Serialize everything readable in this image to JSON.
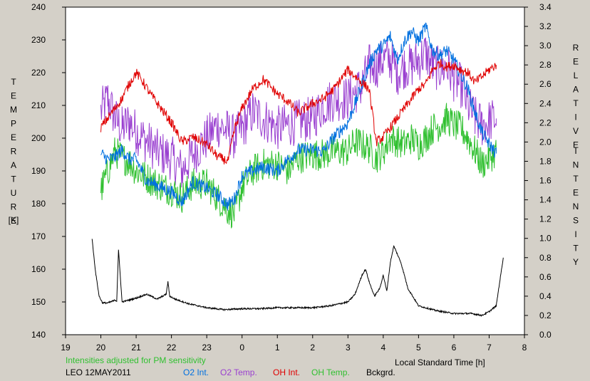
{
  "chart_data": {
    "type": "line",
    "title": "",
    "left_axis": {
      "label_letters": [
        "T",
        "E",
        "M",
        "P",
        "E",
        "R",
        "A",
        "T",
        "U",
        "R",
        "E"
      ],
      "unit": "[K]",
      "range": [
        140,
        240
      ],
      "ticks": [
        "140",
        "150",
        "160",
        "170",
        "180",
        "190",
        "200",
        "210",
        "220",
        "230",
        "240"
      ]
    },
    "right_axis": {
      "label_letters_1": [
        "R",
        "E",
        "L",
        "A",
        "T",
        "I",
        "V",
        "E"
      ],
      "label_letters_2": [
        "I",
        "N",
        "T",
        "E",
        "N",
        "S",
        "I",
        "T",
        "Y"
      ],
      "range": [
        0.0,
        3.4
      ],
      "ticks": [
        "0.0",
        "0.2",
        "0.4",
        "0.6",
        "0.8",
        "1.0",
        "1.2",
        "1.4",
        "1.6",
        "1.8",
        "2.0",
        "2.2",
        "2.4",
        "2.6",
        "2.8",
        "3.0",
        "3.2",
        "3.4"
      ]
    },
    "x_axis": {
      "label": "Local Standard Time [h]",
      "ticks": [
        "19",
        "20",
        "21",
        "22",
        "23",
        "0",
        "1",
        "2",
        "3",
        "4",
        "5",
        "6",
        "7",
        "8"
      ],
      "range": [
        19,
        32
      ]
    },
    "note": "Intensities adjusted for PM sensitivity",
    "station": "LEO 12MAY2011",
    "grid": false,
    "legend_position": "bottom",
    "series": [
      {
        "name": "O2 Int.",
        "color": "#0070e0",
        "axis": "right",
        "x": [
          20.0,
          20.2,
          20.4,
          20.6,
          20.8,
          21.0,
          21.3,
          21.6,
          22.0,
          22.3,
          22.6,
          23.0,
          23.3,
          23.6,
          23.8,
          24.0,
          24.3,
          24.6,
          25.0,
          25.3,
          25.6,
          26.0,
          26.3,
          26.6,
          27.0,
          27.2,
          27.4,
          27.6,
          27.8,
          28.0,
          28.2,
          28.4,
          28.6,
          28.8,
          29.0,
          29.2,
          29.4,
          29.6,
          29.8,
          30.0,
          30.2,
          30.4,
          30.6,
          30.8,
          31.0,
          31.2
        ],
        "y": [
          1.88,
          1.82,
          1.84,
          1.92,
          1.82,
          1.82,
          1.6,
          1.55,
          1.48,
          1.38,
          1.58,
          1.52,
          1.45,
          1.35,
          1.42,
          1.65,
          1.7,
          1.74,
          1.7,
          1.82,
          1.92,
          1.92,
          1.9,
          2.05,
          2.2,
          2.4,
          2.6,
          2.8,
          2.95,
          3.0,
          3.1,
          2.85,
          3.05,
          3.15,
          3.05,
          3.2,
          2.95,
          2.9,
          2.95,
          2.85,
          2.7,
          2.55,
          2.3,
          2.1,
          1.98,
          1.88
        ]
      },
      {
        "name": "O2 Temp.",
        "color": "#9a40d0",
        "axis": "left",
        "x": [
          20.0,
          20.2,
          20.4,
          20.6,
          20.8,
          21.0,
          21.3,
          21.6,
          22.0,
          22.3,
          22.6,
          23.0,
          23.3,
          23.6,
          23.8,
          24.0,
          24.3,
          24.6,
          25.0,
          25.3,
          25.6,
          26.0,
          26.3,
          26.6,
          27.0,
          27.2,
          27.4,
          27.6,
          27.8,
          28.0,
          28.2,
          28.4,
          28.6,
          28.8,
          29.0,
          29.2,
          29.4,
          29.6,
          29.8,
          30.0,
          30.2,
          30.4,
          30.6,
          30.8,
          31.0,
          31.2
        ],
        "y": [
          208,
          212,
          206,
          203,
          205,
          202,
          199,
          196,
          194,
          190,
          195,
          200,
          204,
          202,
          200,
          203,
          208,
          206,
          203,
          204,
          205,
          206,
          210,
          212,
          212,
          214,
          216,
          222,
          222,
          224,
          224,
          220,
          222,
          222,
          224,
          226,
          222,
          221,
          222,
          218,
          216,
          210,
          206,
          204,
          205,
          206
        ]
      },
      {
        "name": "OH Int.",
        "color": "#e00000",
        "axis": "right",
        "x": [
          20.0,
          20.2,
          20.4,
          20.6,
          20.8,
          21.0,
          21.2,
          21.4,
          21.6,
          22.0,
          22.3,
          22.6,
          23.0,
          23.3,
          23.6,
          23.8,
          24.0,
          24.3,
          24.6,
          25.0,
          25.3,
          25.6,
          26.0,
          26.3,
          26.6,
          27.0,
          27.3,
          27.6,
          27.8,
          28.0,
          28.2,
          28.4,
          28.6,
          28.8,
          29.0,
          29.2,
          29.4,
          29.6,
          29.8,
          30.0,
          30.2,
          30.4,
          30.6,
          30.8,
          31.0,
          31.2
        ],
        "y": [
          2.15,
          2.25,
          2.35,
          2.45,
          2.6,
          2.72,
          2.62,
          2.5,
          2.4,
          2.2,
          2.0,
          2.05,
          1.98,
          1.85,
          1.8,
          2.15,
          2.35,
          2.55,
          2.65,
          2.5,
          2.42,
          2.3,
          2.4,
          2.45,
          2.55,
          2.75,
          2.65,
          2.55,
          2.0,
          2.05,
          2.15,
          2.25,
          2.35,
          2.45,
          2.55,
          2.6,
          2.75,
          2.82,
          2.78,
          2.8,
          2.75,
          2.72,
          2.62,
          2.68,
          2.75,
          2.8
        ]
      },
      {
        "name": "OH Temp.",
        "color": "#30c030",
        "axis": "left",
        "x": [
          20.0,
          20.2,
          20.4,
          20.6,
          20.8,
          21.0,
          21.3,
          21.6,
          22.0,
          22.3,
          22.6,
          23.0,
          23.3,
          23.6,
          23.8,
          24.0,
          24.3,
          24.6,
          25.0,
          25.3,
          25.6,
          26.0,
          26.3,
          26.6,
          27.0,
          27.2,
          27.4,
          27.6,
          27.8,
          28.0,
          28.2,
          28.4,
          28.6,
          28.8,
          29.0,
          29.2,
          29.4,
          29.6,
          29.8,
          30.0,
          30.2,
          30.4,
          30.6,
          30.8,
          31.0,
          31.2
        ],
        "y": [
          184,
          190,
          196,
          194,
          193,
          190,
          188,
          186,
          184,
          182,
          186,
          186,
          182,
          178,
          177,
          185,
          190,
          192,
          192,
          190,
          194,
          195,
          195,
          196,
          196,
          199,
          198,
          197,
          194,
          196,
          200,
          199,
          198,
          200,
          198,
          200,
          203,
          204,
          206,
          204,
          203,
          200,
          196,
          192,
          194,
          196
        ]
      },
      {
        "name": "Bckgrd.",
        "color": "#000000",
        "axis": "right",
        "x": [
          19.75,
          19.85,
          19.95,
          20.05,
          20.2,
          20.35,
          20.4,
          20.45,
          20.5,
          20.6,
          20.8,
          21.0,
          21.3,
          21.6,
          21.85,
          21.9,
          21.95,
          22.1,
          22.5,
          23.0,
          23.5,
          24.0,
          24.5,
          25.0,
          25.5,
          26.0,
          26.5,
          27.0,
          27.2,
          27.4,
          27.5,
          27.6,
          27.75,
          27.9,
          28.0,
          28.1,
          28.2,
          28.3,
          28.5,
          28.7,
          29.0,
          29.5,
          30.0,
          30.5,
          30.8,
          31.0,
          31.2,
          31.3,
          31.4
        ],
        "y": [
          1.0,
          0.65,
          0.4,
          0.33,
          0.33,
          0.35,
          0.36,
          0.35,
          0.88,
          0.34,
          0.36,
          0.38,
          0.42,
          0.37,
          0.42,
          0.55,
          0.4,
          0.37,
          0.32,
          0.28,
          0.26,
          0.27,
          0.27,
          0.28,
          0.28,
          0.28,
          0.3,
          0.34,
          0.42,
          0.62,
          0.68,
          0.55,
          0.4,
          0.48,
          0.62,
          0.45,
          0.75,
          0.92,
          0.75,
          0.48,
          0.3,
          0.25,
          0.22,
          0.22,
          0.2,
          0.24,
          0.3,
          0.55,
          0.8
        ]
      }
    ]
  }
}
